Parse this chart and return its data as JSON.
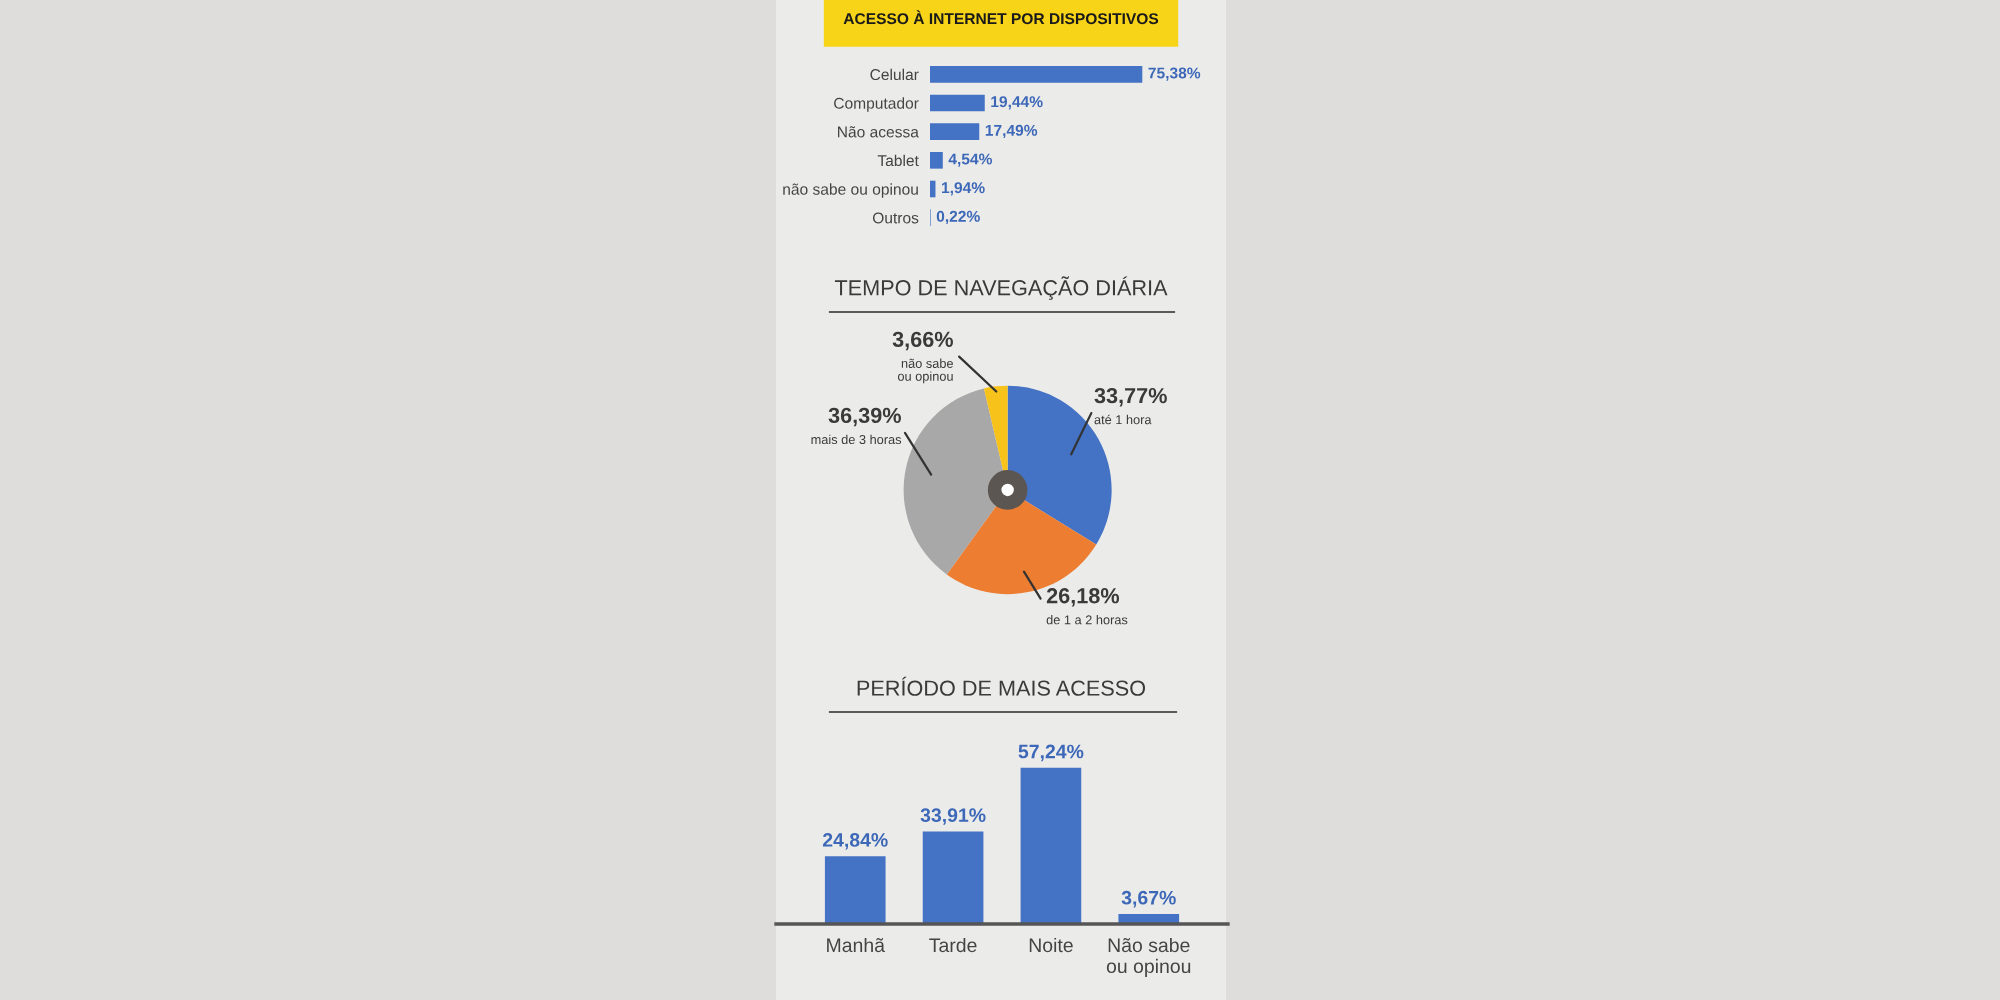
{
  "chart_data": [
    {
      "type": "bar",
      "orientation": "horizontal",
      "title": "ACESSO À INTERNET POR DISPOSITIVOS",
      "categories": [
        "Celular",
        "Computador",
        "Não acessa",
        "Tablet",
        "não sabe ou opinou",
        "Outros"
      ],
      "values": [
        75.38,
        19.44,
        17.49,
        4.54,
        1.94,
        0.22
      ],
      "value_labels": [
        "75,38%",
        "19,44%",
        "17,49%",
        "4,54%",
        "1,94%",
        "0,22%"
      ],
      "color": "#4472c4"
    },
    {
      "type": "pie",
      "title": "TEMPO DE NAVEGAÇÃO DIÁRIA",
      "categories": [
        "até 1 hora",
        "de 1 a 2 horas",
        "mais de 3 horas",
        "não sabe\nou opinou"
      ],
      "values": [
        33.77,
        26.18,
        36.39,
        3.66
      ],
      "value_labels": [
        "33,77%",
        "26,18%",
        "36,39%",
        "3,66%"
      ],
      "colors": [
        "#4472c4",
        "#ed7d31",
        "#a8a8a8",
        "#f7c21a"
      ]
    },
    {
      "type": "bar",
      "title": "PERÍODO DE MAIS ACESSO",
      "categories": [
        "Manhã",
        "Tarde",
        "Noite",
        "Não sabe\nou opinou"
      ],
      "values": [
        24.84,
        33.91,
        57.24,
        3.67
      ],
      "value_labels": [
        "24,84%",
        "33,91%",
        "57,24%",
        "3,67%"
      ],
      "color": "#4472c4"
    }
  ]
}
